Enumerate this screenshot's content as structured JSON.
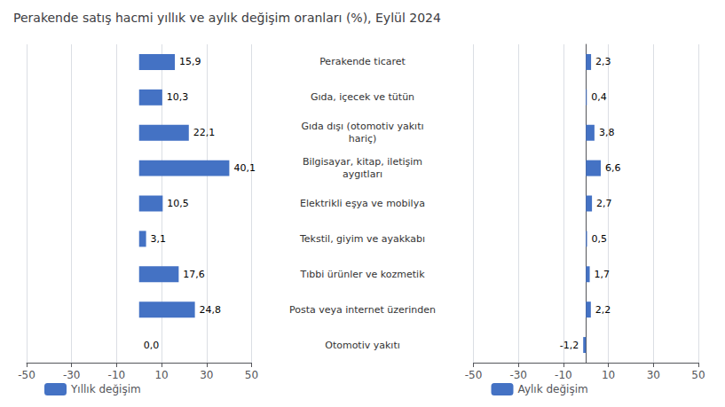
{
  "chart_data": [
    {
      "type": "bar",
      "title": "Perakende satış hacmi yıllık ve aylık değişim oranları (%), Eylül 2024",
      "orientation": "horizontal",
      "categories": [
        "Perakende ticaret",
        "Gıda, içecek ve tütün",
        "Gıda dışı (otomotiv yakıtı\nhariç)",
        "Bilgisayar, kitap, iletişim\naygıtları",
        "Elektrikli eşya ve mobilya",
        "Tekstil, giyim ve ayakkabı",
        "Tıbbi ürünler ve kozmetik",
        "Posta veya internet üzerinden",
        "Otomotiv yakıtı"
      ],
      "series": [
        {
          "name": "Yıllık değişim",
          "color": "#4472c4",
          "values": [
            15.9,
            10.3,
            22.1,
            40.1,
            10.5,
            3.1,
            17.6,
            24.8,
            0.0
          ],
          "value_labels": [
            "15,9",
            "10,3",
            "22,1",
            "40,1",
            "10,5",
            "3,1",
            "17,6",
            "24,8",
            "0,0"
          ]
        }
      ],
      "xlim": [
        -50,
        50
      ],
      "xticks": [
        -50,
        -30,
        -10,
        10,
        30,
        50
      ],
      "grid": true,
      "data_labels": true,
      "legend": "bottom"
    },
    {
      "type": "bar",
      "orientation": "horizontal",
      "categories": [
        "Perakende ticaret",
        "Gıda, içecek ve tütün",
        "Gıda dışı (otomotiv yakıtı\nhariç)",
        "Bilgisayar, kitap, iletişim\naygıtları",
        "Elektrikli eşya ve mobilya",
        "Tekstil, giyim ve ayakkabı",
        "Tıbbi ürünler ve kozmetik",
        "Posta veya internet üzerinden",
        "Otomotiv yakıtı"
      ],
      "series": [
        {
          "name": "Aylık değişim",
          "color": "#4472c4",
          "values": [
            2.3,
            0.4,
            3.8,
            6.6,
            2.7,
            0.5,
            1.7,
            2.2,
            -1.2
          ],
          "value_labels": [
            "2,3",
            "0,4",
            "3,8",
            "6,6",
            "2,7",
            "0,5",
            "1,7",
            "2,2",
            "-1,2"
          ]
        }
      ],
      "xlim": [
        -50,
        50
      ],
      "xticks": [
        -50,
        -30,
        -10,
        10,
        30,
        50
      ],
      "grid": true,
      "data_labels": true,
      "legend": "bottom"
    }
  ]
}
